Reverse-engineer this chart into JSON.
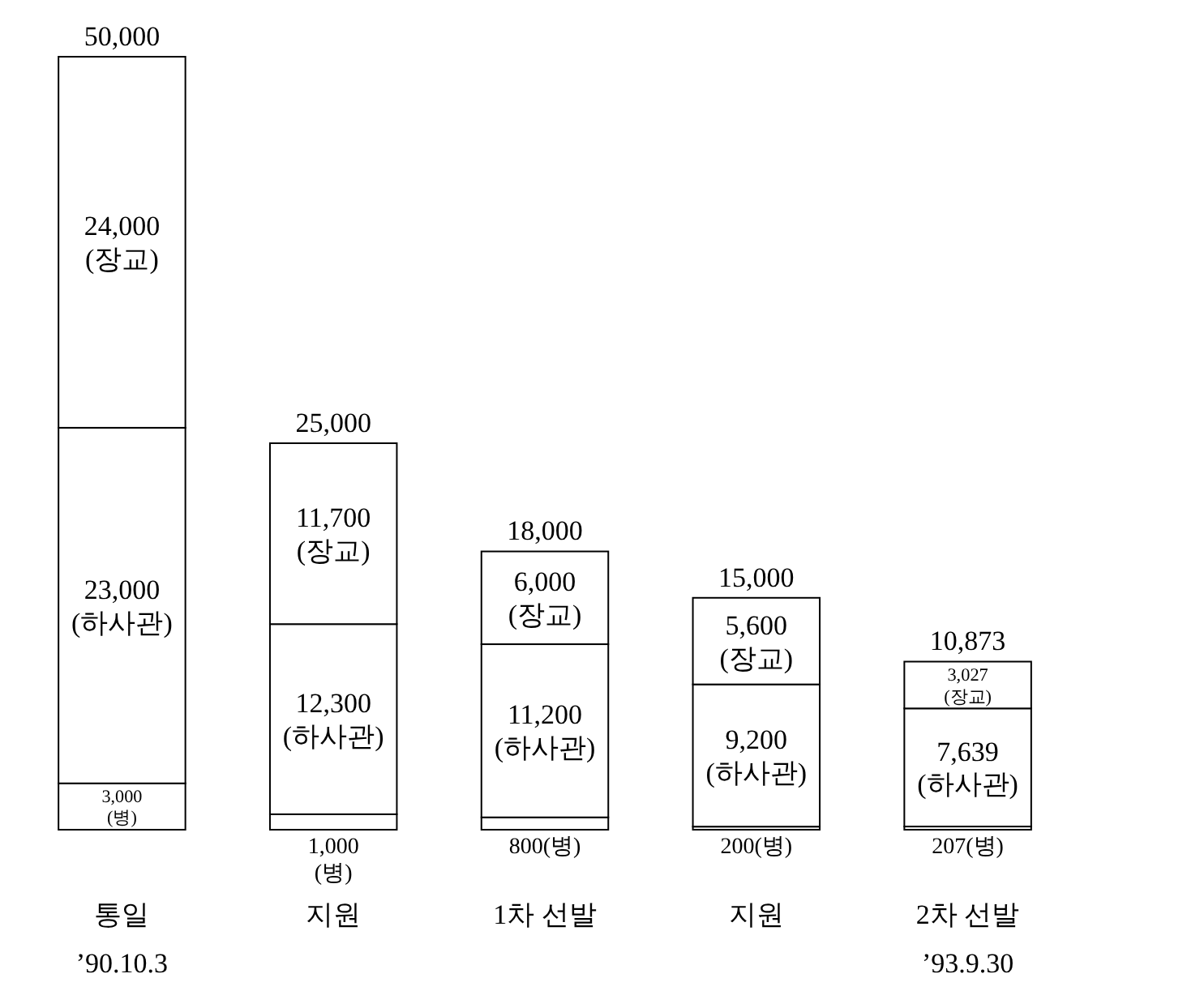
{
  "chart_data": {
    "type": "bar",
    "stacked": true,
    "categories": [
      "통일\n’90.10.3",
      "지원",
      "1차 선발",
      "지원",
      "2차 선발\n’93.9.30"
    ],
    "series": [
      {
        "color": "#ffffff",
        "values": [
          3000,
          1000,
          800,
          200,
          207
        ],
        "value_labels": [
          "3,000\n(병)",
          "1,000\n(병)",
          "800(병)",
          "200(병)",
          "207(병)"
        ]
      },
      {
        "color": "#ffffff",
        "values": [
          23000,
          12300,
          11200,
          9200,
          7639
        ],
        "value_labels": [
          "23,000\n(하사관)",
          "12,300\n(하사관)",
          "11,200\n(하사관)",
          "9,200\n(하사관)",
          "7,639\n(하사관)"
        ]
      },
      {
        "color": "#ffffff",
        "values": [
          24000,
          11700,
          6000,
          5600,
          3027
        ],
        "value_labels": [
          "24,000\n(장교)",
          "11,700\n(장교)",
          "6,000\n(장교)",
          "5,600\n(장교)",
          "3,027\n(장교)"
        ]
      }
    ],
    "totals": [
      "50,000",
      "25,000",
      "18,000",
      "15,000",
      "10,873"
    ]
  }
}
